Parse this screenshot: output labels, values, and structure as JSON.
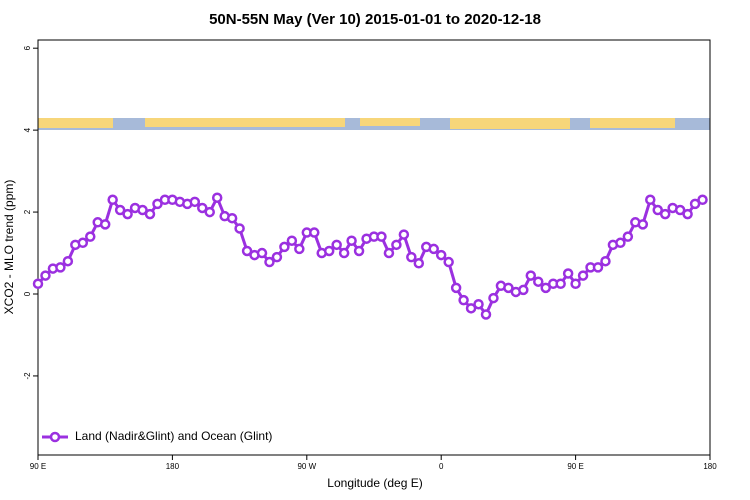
{
  "chart_data": {
    "type": "line",
    "title": "50N-55N May (Ver 10)   2015-01-01 to 2020-12-18",
    "x_label": "Longitude (deg E)",
    "y_label": "XCO2 - MLO trend (ppm)",
    "xlim": [
      90,
      540
    ],
    "xticks": [
      {
        "value": 90,
        "label": "90 E"
      },
      180,
      {
        "value": 270,
        "label": "90 W"
      },
      {
        "value": 360,
        "label": "0"
      },
      {
        "value": 450,
        "label": "90 E"
      },
      {
        "value": 540,
        "label": "180"
      }
    ],
    "ylim": [
      -3.93,
      6.2
    ],
    "yticks": [
      -2,
      0,
      2,
      4,
      6
    ],
    "legend": "bottom-left",
    "x": [
      90,
      95,
      100,
      105,
      110,
      115,
      120,
      125,
      130,
      135,
      140,
      145,
      150,
      155,
      160,
      165,
      170,
      175,
      180,
      185,
      190,
      195,
      200,
      205,
      210,
      215,
      220,
      225,
      230,
      235,
      240,
      245,
      250,
      255,
      260,
      265,
      270,
      275,
      280,
      285,
      290,
      295,
      300,
      305,
      310,
      315,
      320,
      325,
      330,
      335,
      340,
      345,
      350,
      355,
      360,
      365,
      370,
      375,
      380,
      385,
      390,
      395,
      400,
      405,
      410,
      415,
      420,
      425,
      430,
      435,
      440,
      445,
      450,
      455,
      460,
      465,
      470,
      475,
      480,
      485,
      490,
      495,
      500,
      505,
      510,
      515,
      520,
      525,
      530,
      535
    ],
    "series": [
      {
        "name": "Land (Nadir&Glint) and Ocean (Glint)",
        "color": "#9b30e0",
        "values": [
          0.25,
          0.45,
          0.62,
          0.65,
          0.8,
          1.2,
          1.25,
          1.4,
          1.75,
          1.7,
          2.3,
          2.05,
          1.95,
          2.1,
          2.05,
          1.95,
          2.2,
          2.3,
          2.3,
          2.25,
          2.2,
          2.25,
          2.1,
          2.0,
          2.35,
          1.9,
          1.85,
          1.6,
          1.05,
          0.95,
          1.0,
          0.78,
          0.9,
          1.15,
          1.3,
          1.1,
          1.5,
          1.5,
          1.0,
          1.05,
          1.2,
          1.0,
          1.3,
          1.05,
          1.35,
          1.4,
          1.4,
          1.0,
          1.2,
          1.45,
          0.9,
          0.75,
          1.15,
          1.1,
          0.95,
          0.78,
          0.15,
          -0.15,
          -0.35,
          -0.25,
          -0.5,
          -0.1,
          0.2,
          0.15,
          0.05,
          0.1,
          0.45,
          0.3,
          0.15,
          0.25,
          0.25,
          0.5,
          0.25,
          0.45,
          0.65,
          0.65,
          0.8,
          1.2,
          1.25,
          1.4,
          1.75,
          1.7,
          2.3,
          2.05,
          1.95,
          2.1,
          2.05,
          1.95,
          2.2,
          2.3
        ]
      }
    ]
  }
}
